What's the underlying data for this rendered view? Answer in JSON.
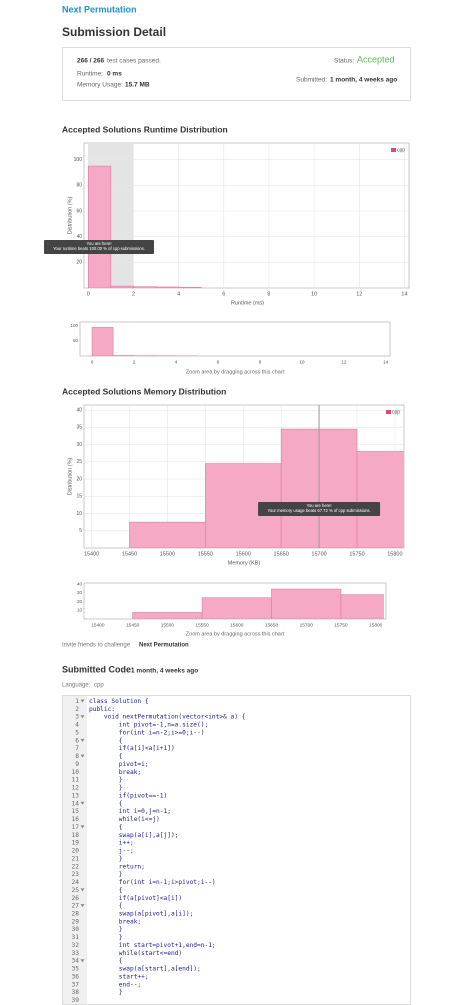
{
  "header": {
    "problem": "Next Permutation",
    "title": "Submission Detail"
  },
  "summary": {
    "passed": "266 / 266",
    "passed_text": "test cases passed.",
    "status_label": "Status:",
    "status": "Accepted",
    "runtime_label": "Runtime:",
    "runtime": "0 ms",
    "memory_label": "Memory Usage:",
    "memory": "15.7 MB",
    "submitted_label": "Submitted:",
    "submitted": "1 month, 4 weeks ago"
  },
  "chart_data": [
    {
      "type": "histogram",
      "title": "Accepted Solutions Runtime Distribution",
      "x_label": "Runtime (ms)",
      "y_label": "Distribution (%)",
      "bins": [
        0,
        1,
        2,
        3,
        4,
        5
      ],
      "values": [
        95,
        1.5,
        1,
        0.8,
        0.5
      ],
      "series_name": "cpp",
      "color": "#f5a9c4",
      "edge_color": "#e07aa2",
      "legend": "top-right",
      "grid": true,
      "xlim": [
        -0.1,
        14.2
      ],
      "ylim": [
        0,
        113
      ],
      "xticks": [
        0,
        2,
        4,
        6,
        8,
        10,
        12,
        14
      ],
      "yticks": [
        20,
        40,
        60,
        80,
        100
      ],
      "highlight_range": [
        0,
        2
      ],
      "tooltip": [
        "You are here!",
        "Your runtime beats 100.00 % of cpp submissions."
      ],
      "zoom_yticks": [
        50,
        100
      ],
      "zoom_note": "Zoom area by dragging across this chart"
    },
    {
      "type": "histogram",
      "title": "Accepted Solutions Memory Distribution",
      "x_label": "Memory (KB)",
      "y_label": "Distribution (%)",
      "bins": [
        15450,
        15550,
        15650,
        15750,
        15850
      ],
      "values": [
        7.5,
        24.5,
        34.5,
        28
      ],
      "series_name": "cpp",
      "color": "#f5a9c4",
      "edge_color": "#e07aa2",
      "legend": "top-right",
      "grid": true,
      "xlim": [
        15390,
        15812
      ],
      "ylim": [
        0,
        41.5
      ],
      "xticks": [
        15400,
        15450,
        15500,
        15550,
        15600,
        15650,
        15700,
        15750,
        15800
      ],
      "yticks": [
        5,
        10,
        15,
        20,
        25,
        30,
        35,
        40
      ],
      "marker": 15700,
      "tooltip": [
        "You are here!",
        "Your memory usage beats 67.72 % of cpp submissions."
      ],
      "zoom_yticks": [
        10,
        20,
        30,
        40
      ],
      "zoom_note": "Zoom area by dragging across this chart"
    }
  ],
  "invite": {
    "text": "Invite friends to challenge",
    "problem": "Next Permutation"
  },
  "code": {
    "title": "Submitted Code:",
    "submitted": "1 month, 4 weeks ago",
    "language_label": "Language:",
    "language": "cpp",
    "lines": [
      {
        "n": 1,
        "text": "class Solution {",
        "fold": true
      },
      {
        "n": 2,
        "text": "public:"
      },
      {
        "n": 3,
        "text": "    void nextPermutation(vector<int>& a) {",
        "fold": true
      },
      {
        "n": 4,
        "text": "        int pivot=-1,n=a.size();"
      },
      {
        "n": 5,
        "text": "        for(int i=n-2;i>=0;i--)"
      },
      {
        "n": 6,
        "text": "        {",
        "fold": true
      },
      {
        "n": 7,
        "text": "        if(a[i]<a[i+1])"
      },
      {
        "n": 8,
        "text": "        {",
        "fold": true
      },
      {
        "n": 9,
        "text": "        pivot=i;"
      },
      {
        "n": 10,
        "text": "        break;"
      },
      {
        "n": 11,
        "text": "        }"
      },
      {
        "n": 12,
        "text": "        }"
      },
      {
        "n": 13,
        "text": "        if(pivot==-1)"
      },
      {
        "n": 14,
        "text": "        {",
        "fold": true
      },
      {
        "n": 15,
        "text": "        int i=0,j=n-1;"
      },
      {
        "n": 16,
        "text": "        while(i<=j)"
      },
      {
        "n": 17,
        "text": "        {",
        "fold": true
      },
      {
        "n": 18,
        "text": "        swap(a[i],a[j]);"
      },
      {
        "n": 19,
        "text": "        i++;"
      },
      {
        "n": 20,
        "text": "        j--;"
      },
      {
        "n": 21,
        "text": "        }"
      },
      {
        "n": 22,
        "text": "        return;"
      },
      {
        "n": 23,
        "text": "        }"
      },
      {
        "n": 24,
        "text": "        for(int i=n-1;i>pivot;i--)"
      },
      {
        "n": 25,
        "text": "        {",
        "fold": true
      },
      {
        "n": 26,
        "text": "        if(a[pivot]<a[i])"
      },
      {
        "n": 27,
        "text": "        {",
        "fold": true
      },
      {
        "n": 28,
        "text": "        swap(a[pivot],a[i]);"
      },
      {
        "n": 29,
        "text": "        break;"
      },
      {
        "n": 30,
        "text": "        }"
      },
      {
        "n": 31,
        "text": "        }"
      },
      {
        "n": 32,
        "text": "        int start=pivot+1,end=n-1;"
      },
      {
        "n": 33,
        "text": "        while(start<=end)"
      },
      {
        "n": 34,
        "text": "        {",
        "fold": true
      },
      {
        "n": 35,
        "text": "        swap(a[start],a[end]);"
      },
      {
        "n": 36,
        "text": "        start++;"
      },
      {
        "n": 37,
        "text": "        end--;"
      },
      {
        "n": 38,
        "text": "        }"
      },
      {
        "n": 39
      }
    ]
  }
}
